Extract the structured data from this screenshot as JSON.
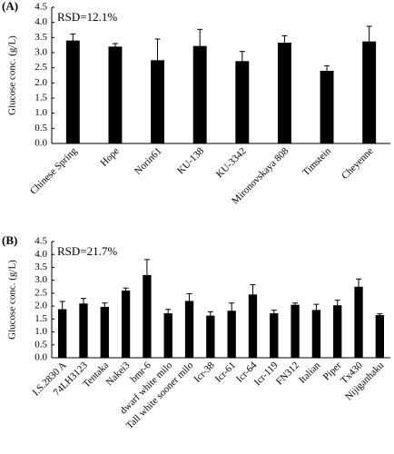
{
  "chart_data": [
    {
      "type": "bar",
      "panel_label": "(A)",
      "annotation": "RSD=12.1%",
      "ylabel": "Glucose conc. (g/L)",
      "color": "#000000",
      "categories": [
        "Chinese Spring",
        "Hope",
        "Norin61",
        "KU-138",
        "KU-3342",
        "Mironovskaya 808",
        "Timstein",
        "Cheyenne"
      ],
      "values": [
        3.4,
        3.2,
        2.75,
        3.22,
        2.72,
        3.33,
        2.4,
        3.37
      ],
      "errors": [
        0.22,
        0.1,
        0.7,
        0.55,
        0.32,
        0.23,
        0.17,
        0.5
      ],
      "ylim": [
        0,
        4.5
      ],
      "yticks": [
        {
          "value": 0,
          "label": "0.0"
        },
        0.5,
        {
          "value": 1,
          "label": "1.0"
        },
        1.5,
        {
          "value": 2,
          "label": "2.0"
        },
        2.5,
        {
          "value": 3,
          "label": "3.0"
        },
        3.5,
        {
          "value": 4,
          "label": "4.0"
        },
        4.5
      ]
    },
    {
      "type": "bar",
      "panel_label": "(B)",
      "annotation": "RSD=21.7%",
      "ylabel": "Glucose conc. (g/L)",
      "color": "#000000",
      "categories": [
        "I.S.2830 A",
        "74LH3123",
        "Tentaka",
        "Nakei3",
        "bmr-6",
        "dwarf white milo",
        "Tall white sooner milo",
        "Icr-38",
        "Icr-61",
        "Icr-64",
        "Icr-119",
        "FN312",
        "Italian",
        "Piper",
        "Tx430",
        "Nijiganhaku"
      ],
      "values": [
        1.88,
        2.1,
        1.97,
        2.6,
        3.2,
        1.72,
        2.2,
        1.63,
        1.82,
        2.45,
        1.72,
        2.05,
        1.85,
        2.03,
        2.75,
        1.65
      ],
      "errors": [
        0.3,
        0.2,
        0.15,
        0.1,
        0.6,
        0.15,
        0.28,
        0.15,
        0.3,
        0.38,
        0.12,
        0.07,
        0.22,
        0.2,
        0.3,
        0.05
      ],
      "ylim": [
        0,
        4.5
      ],
      "yticks": [
        {
          "value": 0,
          "label": "0.0"
        },
        0.5,
        {
          "value": 1,
          "label": "1.0"
        },
        1.5,
        {
          "value": 2,
          "label": "2.0"
        },
        2.5,
        {
          "value": 3,
          "label": "3.0"
        },
        3.5,
        {
          "value": 4,
          "label": "4.0"
        },
        4.5
      ]
    }
  ]
}
